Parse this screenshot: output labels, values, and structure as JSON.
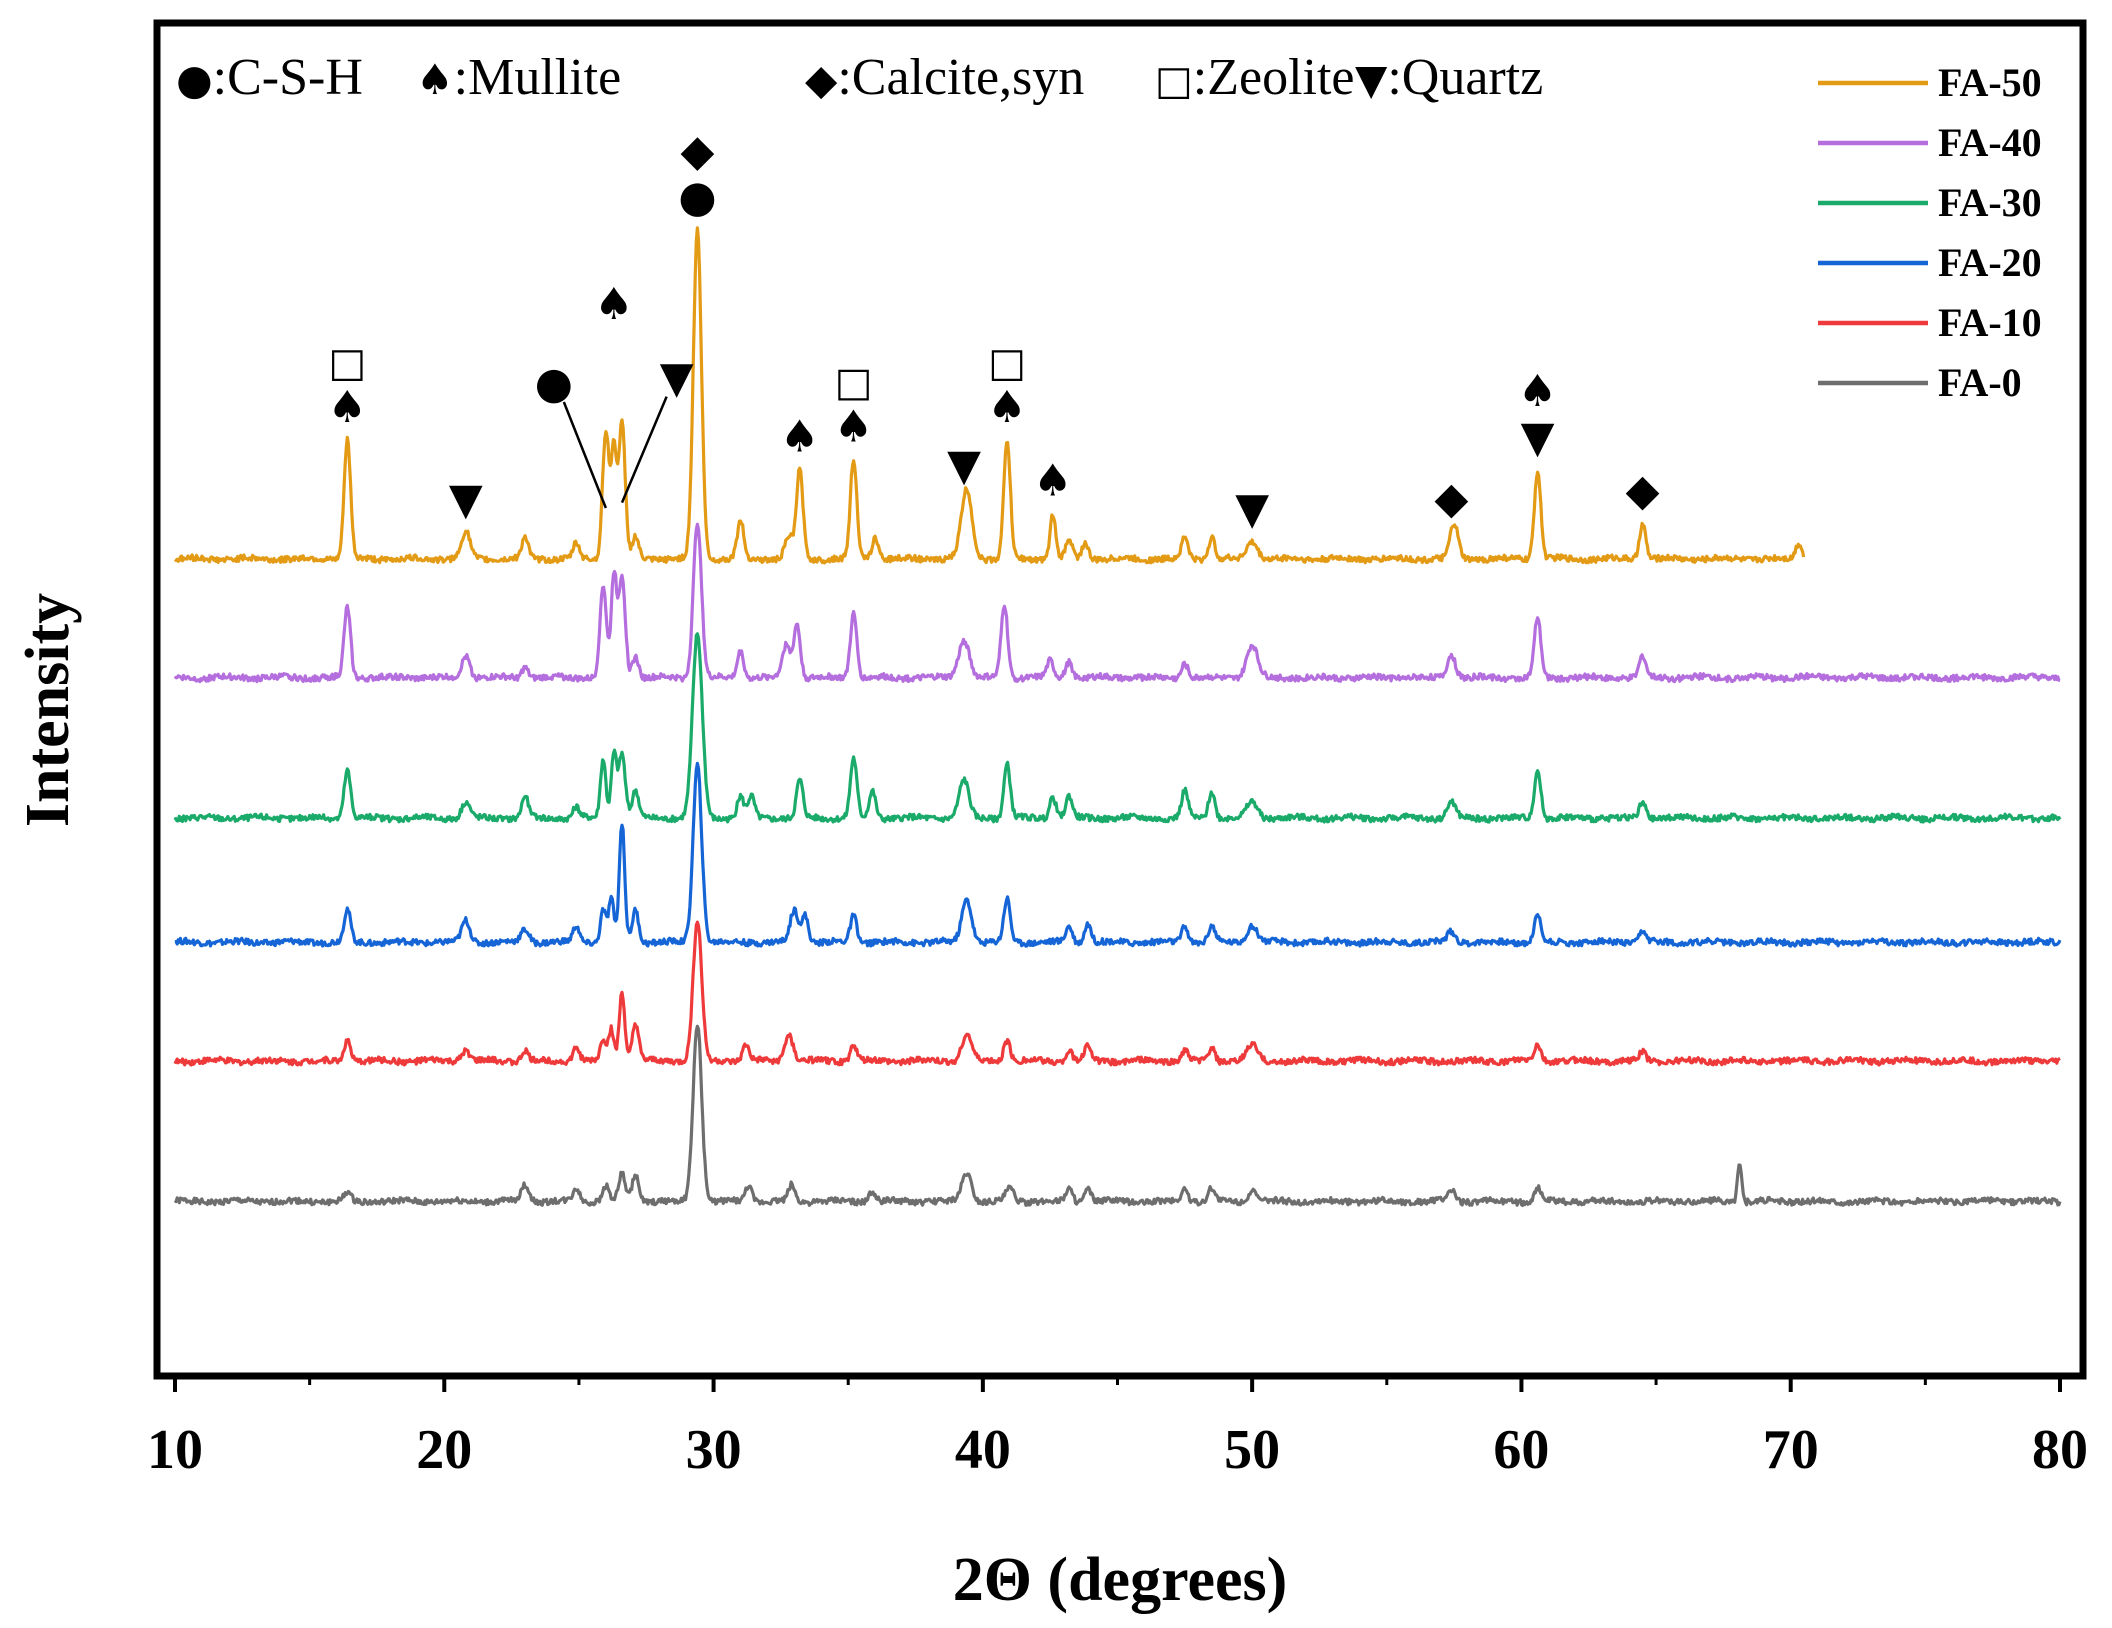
{
  "chart_data": {
    "type": "line",
    "title": "",
    "xlabel": "2Θ (degrees)",
    "ylabel": "Intensity",
    "xlim": [
      10,
      80
    ],
    "xticks": [
      10,
      20,
      30,
      40,
      50,
      60,
      70,
      80
    ],
    "y_ticks_shown": false,
    "legend_position": "top-right",
    "phase_key": [
      {
        "symbol": "●",
        "label": ":C-S-H"
      },
      {
        "symbol": "♠",
        "label": ":Mullite"
      },
      {
        "symbol": "◆",
        "label": ":Calcite,syn"
      },
      {
        "symbol": "□",
        "label": ":Zeolite"
      },
      {
        "symbol": "▼",
        "label": ":Quartz"
      }
    ],
    "series": [
      {
        "name": "FA-50",
        "color": "#E39A14",
        "offset": 6.4,
        "x_end": 70.5,
        "noise_seed": 50,
        "peaks": [
          [
            16.4,
            1.1,
            0.12
          ],
          [
            20.8,
            0.25,
            0.16
          ],
          [
            23.0,
            0.2,
            0.12
          ],
          [
            24.9,
            0.14,
            0.12
          ],
          [
            26.0,
            1.2,
            0.12
          ],
          [
            26.3,
            1.0,
            0.1
          ],
          [
            26.6,
            1.25,
            0.12
          ],
          [
            27.1,
            0.2,
            0.12
          ],
          [
            29.4,
            3.05,
            0.15
          ],
          [
            31.0,
            0.35,
            0.12
          ],
          [
            32.8,
            0.2,
            0.15
          ],
          [
            33.2,
            0.82,
            0.12
          ],
          [
            35.2,
            0.92,
            0.12
          ],
          [
            36.0,
            0.2,
            0.12
          ],
          [
            39.4,
            0.64,
            0.2
          ],
          [
            40.9,
            1.1,
            0.12
          ],
          [
            42.6,
            0.42,
            0.1
          ],
          [
            43.2,
            0.18,
            0.12
          ],
          [
            43.8,
            0.15,
            0.12
          ],
          [
            47.5,
            0.2,
            0.12
          ],
          [
            48.5,
            0.2,
            0.12
          ],
          [
            50.0,
            0.16,
            0.2
          ],
          [
            57.5,
            0.32,
            0.15
          ],
          [
            60.6,
            0.82,
            0.12
          ],
          [
            64.5,
            0.33,
            0.12
          ],
          [
            70.3,
            0.15,
            0.12
          ]
        ]
      },
      {
        "name": "FA-40",
        "color": "#B46EDE",
        "offset": 5.3,
        "x_end": 80,
        "noise_seed": 40,
        "peaks": [
          [
            16.4,
            0.65,
            0.12
          ],
          [
            20.8,
            0.2,
            0.15
          ],
          [
            23.0,
            0.1,
            0.12
          ],
          [
            25.9,
            0.85,
            0.12
          ],
          [
            26.3,
            0.95,
            0.1
          ],
          [
            26.6,
            0.95,
            0.12
          ],
          [
            27.1,
            0.2,
            0.12
          ],
          [
            29.4,
            1.45,
            0.15
          ],
          [
            31.0,
            0.25,
            0.12
          ],
          [
            32.7,
            0.3,
            0.15
          ],
          [
            33.1,
            0.5,
            0.12
          ],
          [
            35.2,
            0.6,
            0.12
          ],
          [
            39.3,
            0.35,
            0.2
          ],
          [
            40.8,
            0.68,
            0.12
          ],
          [
            42.5,
            0.15,
            0.12
          ],
          [
            43.2,
            0.15,
            0.12
          ],
          [
            47.5,
            0.14,
            0.12
          ],
          [
            50.0,
            0.3,
            0.2
          ],
          [
            57.4,
            0.22,
            0.15
          ],
          [
            60.6,
            0.55,
            0.12
          ],
          [
            64.5,
            0.2,
            0.12
          ]
        ]
      },
      {
        "name": "FA-30",
        "color": "#1AAA6A",
        "offset": 4.0,
        "x_end": 80,
        "noise_seed": 30,
        "peaks": [
          [
            16.4,
            0.45,
            0.12
          ],
          [
            20.8,
            0.15,
            0.15
          ],
          [
            23.0,
            0.2,
            0.12
          ],
          [
            24.9,
            0.1,
            0.12
          ],
          [
            25.9,
            0.55,
            0.1
          ],
          [
            26.3,
            0.6,
            0.1
          ],
          [
            26.6,
            0.6,
            0.12
          ],
          [
            27.1,
            0.25,
            0.12
          ],
          [
            29.4,
            1.7,
            0.18
          ],
          [
            31.0,
            0.2,
            0.12
          ],
          [
            31.4,
            0.2,
            0.12
          ],
          [
            33.2,
            0.35,
            0.12
          ],
          [
            35.2,
            0.55,
            0.12
          ],
          [
            35.9,
            0.25,
            0.12
          ],
          [
            39.3,
            0.35,
            0.18
          ],
          [
            40.9,
            0.5,
            0.12
          ],
          [
            42.6,
            0.2,
            0.12
          ],
          [
            43.2,
            0.2,
            0.12
          ],
          [
            47.5,
            0.25,
            0.12
          ],
          [
            48.5,
            0.25,
            0.12
          ],
          [
            50.0,
            0.15,
            0.2
          ],
          [
            57.4,
            0.15,
            0.15
          ],
          [
            60.6,
            0.45,
            0.12
          ],
          [
            64.5,
            0.15,
            0.12
          ]
        ]
      },
      {
        "name": "FA-20",
        "color": "#1565D6",
        "offset": 2.85,
        "x_end": 80,
        "noise_seed": 20,
        "peaks": [
          [
            16.4,
            0.3,
            0.12
          ],
          [
            20.8,
            0.2,
            0.15
          ],
          [
            23.0,
            0.12,
            0.15
          ],
          [
            24.9,
            0.15,
            0.12
          ],
          [
            25.9,
            0.3,
            0.1
          ],
          [
            26.2,
            0.4,
            0.1
          ],
          [
            26.6,
            1.1,
            0.1
          ],
          [
            27.1,
            0.3,
            0.12
          ],
          [
            29.4,
            1.65,
            0.16
          ],
          [
            33.0,
            0.3,
            0.15
          ],
          [
            33.4,
            0.25,
            0.12
          ],
          [
            35.2,
            0.25,
            0.12
          ],
          [
            39.4,
            0.4,
            0.18
          ],
          [
            40.9,
            0.4,
            0.12
          ],
          [
            43.2,
            0.15,
            0.12
          ],
          [
            43.9,
            0.18,
            0.12
          ],
          [
            47.5,
            0.15,
            0.12
          ],
          [
            48.5,
            0.15,
            0.12
          ],
          [
            50.0,
            0.15,
            0.2
          ],
          [
            57.4,
            0.1,
            0.15
          ],
          [
            60.6,
            0.25,
            0.12
          ],
          [
            64.5,
            0.1,
            0.12
          ]
        ]
      },
      {
        "name": "FA-10",
        "color": "#EE3A3A",
        "offset": 1.75,
        "x_end": 80,
        "noise_seed": 10,
        "peaks": [
          [
            16.4,
            0.2,
            0.12
          ],
          [
            20.8,
            0.1,
            0.15
          ],
          [
            23.0,
            0.1,
            0.12
          ],
          [
            24.9,
            0.13,
            0.12
          ],
          [
            25.9,
            0.2,
            0.1
          ],
          [
            26.2,
            0.3,
            0.1
          ],
          [
            26.6,
            0.65,
            0.1
          ],
          [
            27.1,
            0.35,
            0.12
          ],
          [
            29.4,
            1.3,
            0.16
          ],
          [
            31.2,
            0.15,
            0.12
          ],
          [
            32.8,
            0.25,
            0.15
          ],
          [
            35.2,
            0.15,
            0.12
          ],
          [
            39.4,
            0.25,
            0.18
          ],
          [
            40.9,
            0.2,
            0.12
          ],
          [
            43.2,
            0.1,
            0.12
          ],
          [
            43.9,
            0.15,
            0.12
          ],
          [
            47.5,
            0.1,
            0.12
          ],
          [
            48.5,
            0.12,
            0.12
          ],
          [
            50.0,
            0.15,
            0.2
          ],
          [
            60.6,
            0.15,
            0.12
          ],
          [
            64.5,
            0.08,
            0.12
          ]
        ]
      },
      {
        "name": "FA-0",
        "color": "#6E6E6E",
        "offset": 0.45,
        "x_end": 80,
        "noise_seed": 1,
        "peaks": [
          [
            16.4,
            0.08,
            0.12
          ],
          [
            23.0,
            0.15,
            0.15
          ],
          [
            24.9,
            0.12,
            0.12
          ],
          [
            26.0,
            0.15,
            0.12
          ],
          [
            26.6,
            0.25,
            0.12
          ],
          [
            27.1,
            0.25,
            0.12
          ],
          [
            29.4,
            1.65,
            0.16
          ],
          [
            31.3,
            0.15,
            0.12
          ],
          [
            32.9,
            0.15,
            0.12
          ],
          [
            35.9,
            0.1,
            0.12
          ],
          [
            39.4,
            0.27,
            0.18
          ],
          [
            41.0,
            0.12,
            0.15
          ],
          [
            43.2,
            0.12,
            0.12
          ],
          [
            43.9,
            0.12,
            0.12
          ],
          [
            47.5,
            0.12,
            0.12
          ],
          [
            48.5,
            0.12,
            0.12
          ],
          [
            50.0,
            0.1,
            0.15
          ],
          [
            57.4,
            0.1,
            0.15
          ],
          [
            60.6,
            0.12,
            0.12
          ],
          [
            68.1,
            0.35,
            0.08
          ]
        ]
      }
    ],
    "peak_annotations": [
      {
        "x": 16.4,
        "series": "FA-50",
        "symbols": [
          "♠",
          "□"
        ]
      },
      {
        "x": 20.8,
        "series": "FA-50",
        "symbols": [
          "▼"
        ]
      },
      {
        "x": 29.4,
        "series": "FA-50",
        "symbols": [
          "●",
          "◆"
        ]
      },
      {
        "x": 33.2,
        "series": "FA-50",
        "symbols": [
          "♠"
        ]
      },
      {
        "x": 35.2,
        "series": "FA-50",
        "symbols": [
          "♠",
          "□"
        ]
      },
      {
        "x": 39.3,
        "series": "FA-50",
        "symbols": [
          "▼"
        ]
      },
      {
        "x": 40.9,
        "series": "FA-50",
        "symbols": [
          "♠",
          "□"
        ]
      },
      {
        "x": 42.6,
        "series": "FA-50",
        "symbols": [
          "♠"
        ]
      },
      {
        "x": 50.0,
        "series": "FA-50",
        "symbols": [
          "▼"
        ]
      },
      {
        "x": 57.4,
        "series": "FA-50",
        "symbols": [
          "◆"
        ]
      },
      {
        "x": 60.6,
        "series": "FA-50",
        "symbols": [
          "▼",
          "♠"
        ]
      },
      {
        "x": 64.5,
        "series": "FA-50",
        "symbols": [
          "◆"
        ]
      }
    ],
    "arrow_annotations": [
      {
        "x": 26.0,
        "series": "FA-50",
        "symbol": "●"
      },
      {
        "x": 26.3,
        "series": "FA-50",
        "symbol": "♠"
      },
      {
        "x": 26.6,
        "series": "FA-50",
        "symbol": "▼"
      }
    ]
  }
}
